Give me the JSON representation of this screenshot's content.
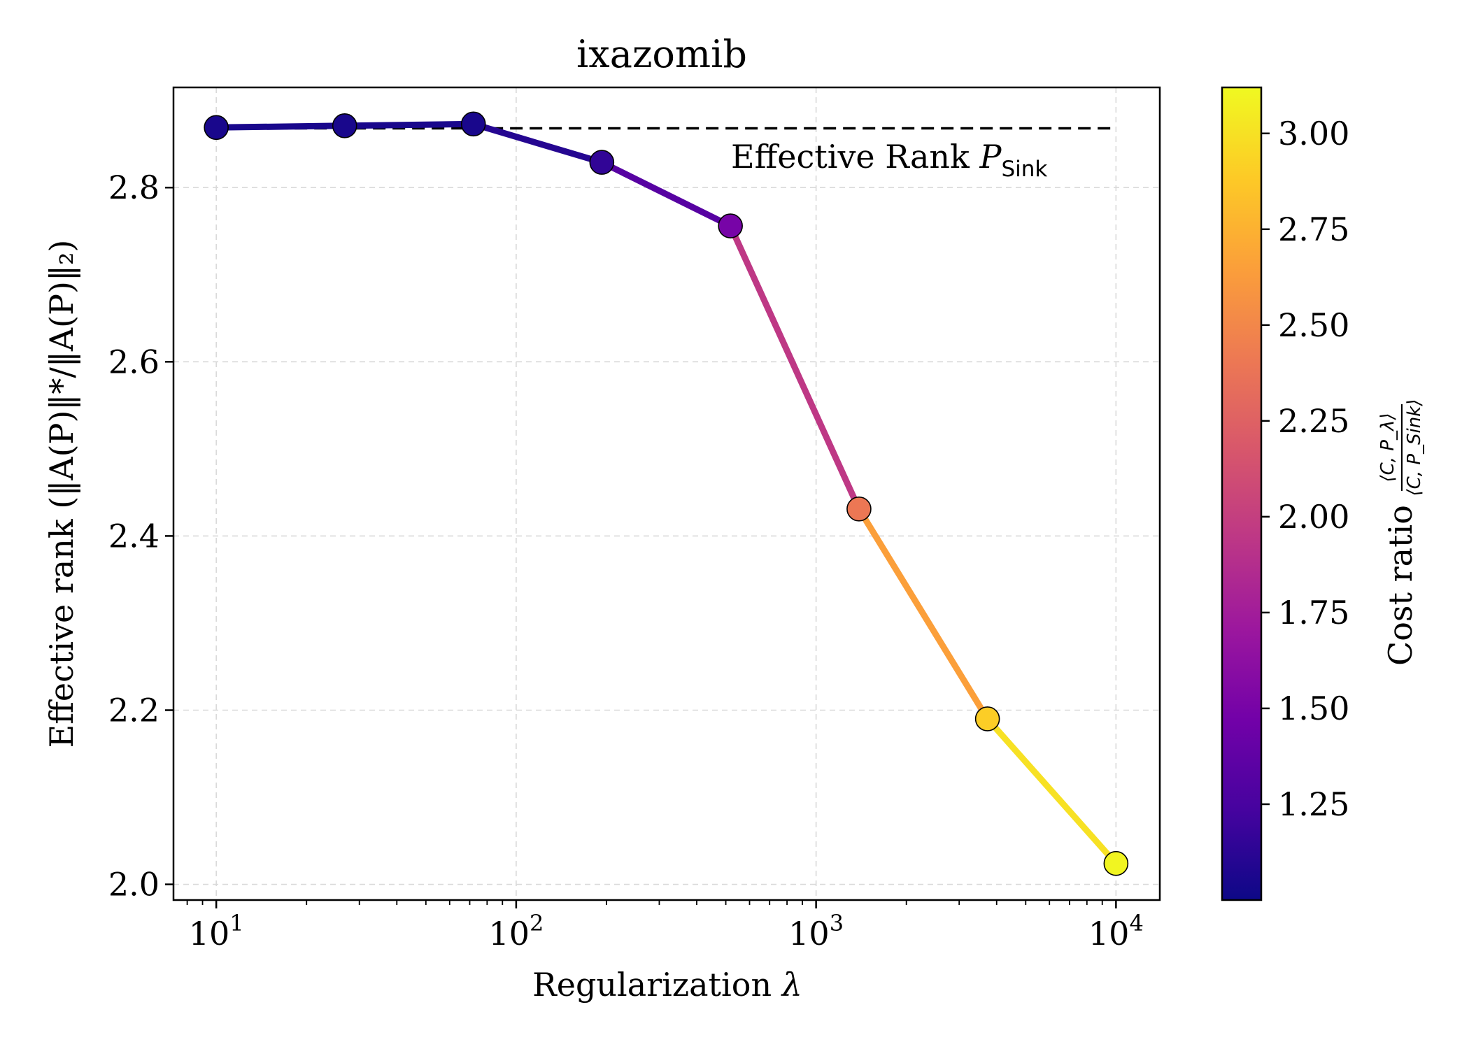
{
  "chart_data": {
    "type": "line",
    "title": "ixazomib",
    "xlabel": {
      "prefix": "Regularization ",
      "symbol": "λ"
    },
    "ylabel": {
      "text": "Effective rank (‖A(P)‖*/‖A(P)‖₂)"
    },
    "x_scale": "log",
    "xlim": [
      7.2,
      14000
    ],
    "ylim": [
      1.982,
      2.915
    ],
    "x_ticks": [
      {
        "value": 10,
        "base": "10",
        "exp": "1"
      },
      {
        "value": 100,
        "base": "10",
        "exp": "2"
      },
      {
        "value": 1000,
        "base": "10",
        "exp": "3"
      },
      {
        "value": 10000,
        "base": "10",
        "exp": "4"
      }
    ],
    "y_ticks": [
      {
        "value": 2.0,
        "label": "2.0"
      },
      {
        "value": 2.2,
        "label": "2.2"
      },
      {
        "value": 2.4,
        "label": "2.4"
      },
      {
        "value": 2.6,
        "label": "2.6"
      },
      {
        "value": 2.8,
        "label": "2.8"
      }
    ],
    "grid": true,
    "series": [
      {
        "x": [
          10,
          26.8,
          72,
          193,
          518,
          1390,
          3728,
          10000
        ],
        "y": [
          2.869,
          2.871,
          2.873,
          2.829,
          2.756,
          2.431,
          2.19,
          2.024
        ],
        "cost_ratio": [
          1.05,
          1.05,
          1.05,
          1.15,
          1.5,
          2.4,
          2.9,
          3.1
        ]
      }
    ],
    "reference_line": {
      "y": 2.868,
      "style": "dashed",
      "color": "#000000",
      "label_prefix": "Effective Rank ",
      "label_symbol": "P",
      "label_subscript": "Sink"
    },
    "colorbar": {
      "colormap": "plasma",
      "min": 1.0,
      "max": 3.12,
      "ticks": [
        {
          "value": 1.25,
          "label": "1.25"
        },
        {
          "value": 1.5,
          "label": "1.50"
        },
        {
          "value": 1.75,
          "label": "1.75"
        },
        {
          "value": 2.0,
          "label": "2.00"
        },
        {
          "value": 2.25,
          "label": "2.25"
        },
        {
          "value": 2.5,
          "label": "2.50"
        },
        {
          "value": 2.75,
          "label": "2.75"
        },
        {
          "value": 3.0,
          "label": "3.00"
        }
      ],
      "label": "Cost ratio",
      "fraction_numerator": "⟨C, P_λ⟩",
      "fraction_denominator": "⟨C, P_Sink⟩",
      "plasma_stops": [
        "#0d0887",
        "#46039f",
        "#7201a8",
        "#9c179e",
        "#bd3786",
        "#d8576b",
        "#ed7953",
        "#fb9f3a",
        "#fdca26",
        "#f0f921"
      ]
    }
  }
}
